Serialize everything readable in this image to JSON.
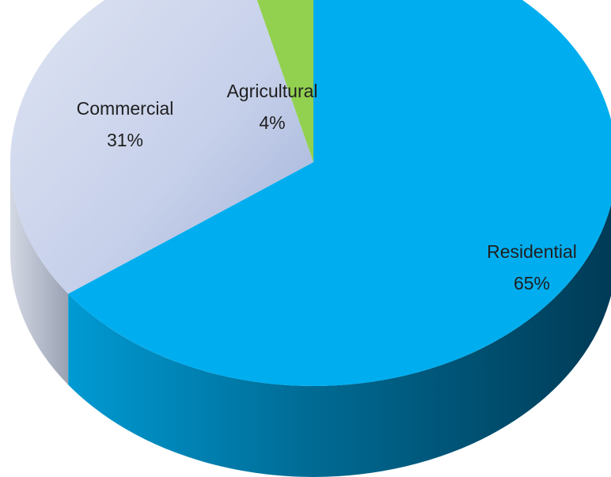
{
  "chart_data": {
    "type": "pie",
    "style": "3d",
    "categories": [
      "Residential",
      "Commercial",
      "Agricultural"
    ],
    "values": [
      65,
      31,
      4
    ],
    "labels": [
      {
        "name": "Residential",
        "percent": "65%"
      },
      {
        "name": "Commercial",
        "percent": "31%"
      },
      {
        "name": "Agricultural",
        "percent": "4%"
      }
    ],
    "colors": {
      "Residential": "#00aeef",
      "Commercial": "#c9d4ee",
      "Agricultural": "#92d050"
    },
    "legend": "none",
    "title": ""
  }
}
